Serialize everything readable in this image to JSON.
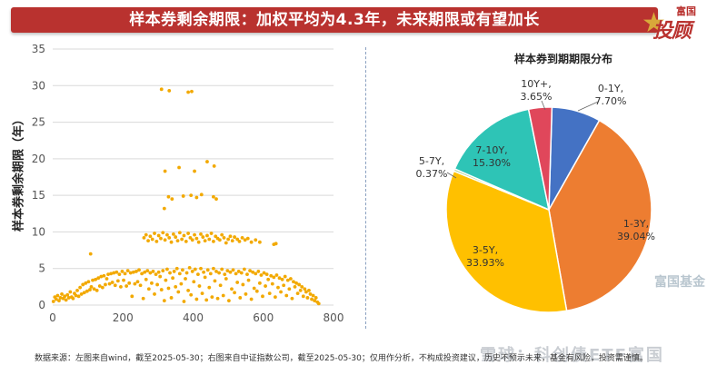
{
  "banner": {
    "title": "样本券剩余期限：加权平均为4.3年，未来期限或有望加长"
  },
  "brand": {
    "top": "富国",
    "main": "投顾"
  },
  "footer": {
    "text": "数据来源：左图来自wind，截至2025-05-30；右图来自中证指数公司，截至2025-05-30；仅用作分析，不构成投资建议，历史不预示未来，基金有风险，投资需谨慎。"
  },
  "watermarks": {
    "fund": "富国基金",
    "bottom": "雪球：科创债ETF富国"
  },
  "colors": {
    "banner": "#b9322f",
    "scatter": "#f2a900"
  },
  "chart_data": [
    {
      "type": "scatter",
      "title": "",
      "xlabel": "",
      "ylabel": "样本券剩余期限（年）",
      "xlim": [
        0,
        800
      ],
      "ylim": [
        0,
        35
      ],
      "xticks": [
        0,
        200,
        400,
        600,
        800
      ],
      "yticks": [
        0,
        5,
        10,
        15,
        20,
        25,
        30,
        35
      ],
      "grid": "horizontal",
      "series": [
        {
          "points": [
            [
              2,
              0.5
            ],
            [
              6,
              1.1
            ],
            [
              10,
              0.8
            ],
            [
              14,
              1.3
            ],
            [
              18,
              0.6
            ],
            [
              22,
              1.0
            ],
            [
              26,
              1.5
            ],
            [
              30,
              0.9
            ],
            [
              34,
              1.2
            ],
            [
              38,
              0.7
            ],
            [
              42,
              1.4
            ],
            [
              46,
              1.0
            ],
            [
              50,
              1.8
            ],
            [
              54,
              1.1
            ],
            [
              58,
              0.9
            ],
            [
              62,
              1.6
            ],
            [
              66,
              1.3
            ],
            [
              70,
              2.0
            ],
            [
              74,
              1.2
            ],
            [
              78,
              2.4
            ],
            [
              82,
              1.5
            ],
            [
              86,
              2.8
            ],
            [
              90,
              1.7
            ],
            [
              94,
              3.0
            ],
            [
              98,
              1.9
            ],
            [
              102,
              3.2
            ],
            [
              106,
              2.1
            ],
            [
              110,
              2.5
            ],
            [
              114,
              3.4
            ],
            [
              118,
              2.2
            ],
            [
              122,
              3.5
            ],
            [
              126,
              2.0
            ],
            [
              130,
              3.7
            ],
            [
              134,
              2.6
            ],
            [
              138,
              3.9
            ],
            [
              142,
              2.4
            ],
            [
              146,
              4.0
            ],
            [
              150,
              2.8
            ],
            [
              154,
              3.6
            ],
            [
              158,
              4.2
            ],
            [
              162,
              2.9
            ],
            [
              166,
              4.3
            ],
            [
              170,
              3.1
            ],
            [
              174,
              4.4
            ],
            [
              178,
              2.7
            ],
            [
              182,
              4.5
            ],
            [
              186,
              3.3
            ],
            [
              190,
              4.2
            ],
            [
              194,
              2.5
            ],
            [
              198,
              4.6
            ],
            [
              202,
              3.4
            ],
            [
              206,
              4.3
            ],
            [
              210,
              2.6
            ],
            [
              214,
              4.7
            ],
            [
              218,
              3.0
            ],
            [
              222,
              4.4
            ],
            [
              226,
              1.2
            ],
            [
              230,
              4.5
            ],
            [
              234,
              2.9
            ],
            [
              238,
              4.6
            ],
            [
              242,
              3.2
            ],
            [
              246,
              4.8
            ],
            [
              250,
              2.7
            ],
            [
              254,
              4.3
            ],
            [
              258,
              0.9
            ],
            [
              262,
              4.5
            ],
            [
              266,
              3.5
            ],
            [
              270,
              4.7
            ],
            [
              274,
              2.2
            ],
            [
              278,
              4.4
            ],
            [
              282,
              3.0
            ],
            [
              286,
              4.6
            ],
            [
              290,
              1.5
            ],
            [
              294,
              4.2
            ],
            [
              298,
              2.8
            ],
            [
              302,
              4.5
            ],
            [
              306,
              3.9
            ],
            [
              310,
              2.1
            ],
            [
              314,
              4.7
            ],
            [
              318,
              0.6
            ],
            [
              322,
              3.4
            ],
            [
              326,
              4.9
            ],
            [
              330,
              2.3
            ],
            [
              334,
              4.4
            ],
            [
              338,
              1.0
            ],
            [
              342,
              3.7
            ],
            [
              346,
              4.6
            ],
            [
              350,
              2.5
            ],
            [
              354,
              5.0
            ],
            [
              358,
              1.8
            ],
            [
              362,
              4.3
            ],
            [
              366,
              2.9
            ],
            [
              370,
              4.8
            ],
            [
              374,
              0.5
            ],
            [
              378,
              3.6
            ],
            [
              382,
              4.4
            ],
            [
              386,
              2.0
            ],
            [
              390,
              5.1
            ],
            [
              394,
              1.4
            ],
            [
              398,
              4.6
            ],
            [
              402,
              3.2
            ],
            [
              406,
              4.9
            ],
            [
              410,
              0.8
            ],
            [
              414,
              4.2
            ],
            [
              418,
              2.6
            ],
            [
              422,
              5.0
            ],
            [
              426,
              1.6
            ],
            [
              430,
              4.5
            ],
            [
              434,
              3.8
            ],
            [
              438,
              0.7
            ],
            [
              442,
              4.8
            ],
            [
              446,
              2.4
            ],
            [
              450,
              4.3
            ],
            [
              454,
              1.1
            ],
            [
              458,
              5.0
            ],
            [
              462,
              3.3
            ],
            [
              466,
              4.6
            ],
            [
              470,
              0.9
            ],
            [
              474,
              4.4
            ],
            [
              478,
              2.7
            ],
            [
              482,
              4.9
            ],
            [
              486,
              1.3
            ],
            [
              490,
              4.2
            ],
            [
              494,
              3.6
            ],
            [
              498,
              4.7
            ],
            [
              502,
              0.6
            ],
            [
              506,
              4.5
            ],
            [
              510,
              2.2
            ],
            [
              514,
              4.8
            ],
            [
              518,
              1.7
            ],
            [
              522,
              4.3
            ],
            [
              526,
              3.1
            ],
            [
              530,
              4.6
            ],
            [
              534,
              1.0
            ],
            [
              538,
              4.4
            ],
            [
              542,
              2.8
            ],
            [
              546,
              4.9
            ],
            [
              550,
              1.5
            ],
            [
              554,
              4.2
            ],
            [
              558,
              3.4
            ],
            [
              562,
              4.7
            ],
            [
              566,
              0.8
            ],
            [
              570,
              4.5
            ],
            [
              574,
              2.3
            ],
            [
              578,
              4.3
            ],
            [
              582,
              1.9
            ],
            [
              586,
              4.6
            ],
            [
              590,
              3.0
            ],
            [
              594,
              4.1
            ],
            [
              598,
              1.2
            ],
            [
              602,
              4.4
            ],
            [
              606,
              2.6
            ],
            [
              610,
              4.2
            ],
            [
              614,
              3.5
            ],
            [
              618,
              1.6
            ],
            [
              622,
              4.0
            ],
            [
              626,
              2.9
            ],
            [
              630,
              3.8
            ],
            [
              634,
              1.1
            ],
            [
              638,
              4.1
            ],
            [
              642,
              2.4
            ],
            [
              646,
              3.7
            ],
            [
              650,
              1.8
            ],
            [
              654,
              3.5
            ],
            [
              658,
              2.7
            ],
            [
              662,
              3.9
            ],
            [
              666,
              1.3
            ],
            [
              670,
              3.4
            ],
            [
              674,
              2.2
            ],
            [
              678,
              3.6
            ],
            [
              682,
              0.9
            ],
            [
              686,
              3.2
            ],
            [
              690,
              2.5
            ],
            [
              694,
              3.0
            ],
            [
              698,
              1.6
            ],
            [
              702,
              2.8
            ],
            [
              706,
              2.0
            ],
            [
              710,
              2.5
            ],
            [
              714,
              1.2
            ],
            [
              718,
              2.2
            ],
            [
              722,
              1.8
            ],
            [
              726,
              1.0
            ],
            [
              730,
              2.0
            ],
            [
              734,
              1.5
            ],
            [
              738,
              0.8
            ],
            [
              742,
              1.3
            ],
            [
              746,
              0.6
            ],
            [
              750,
              1.0
            ],
            [
              754,
              0.4
            ],
            [
              758,
              0.2
            ],
            [
              108,
              7.0
            ],
            [
              260,
              9.2
            ],
            [
              266,
              9.6
            ],
            [
              272,
              8.8
            ],
            [
              278,
              9.4
            ],
            [
              284,
              9.0
            ],
            [
              290,
              9.8
            ],
            [
              296,
              8.7
            ],
            [
              302,
              9.5
            ],
            [
              308,
              9.1
            ],
            [
              314,
              9.9
            ],
            [
              320,
              8.9
            ],
            [
              326,
              9.6
            ],
            [
              332,
              9.2
            ],
            [
              338,
              8.6
            ],
            [
              344,
              9.7
            ],
            [
              350,
              9.3
            ],
            [
              356,
              8.8
            ],
            [
              362,
              9.9
            ],
            [
              368,
              9.0
            ],
            [
              374,
              9.5
            ],
            [
              380,
              8.7
            ],
            [
              386,
              9.8
            ],
            [
              392,
              9.2
            ],
            [
              398,
              8.9
            ],
            [
              404,
              9.6
            ],
            [
              410,
              9.1
            ],
            [
              416,
              8.6
            ],
            [
              422,
              9.7
            ],
            [
              428,
              9.3
            ],
            [
              434,
              8.8
            ],
            [
              440,
              9.5
            ],
            [
              446,
              9.0
            ],
            [
              452,
              9.8
            ],
            [
              458,
              8.7
            ],
            [
              464,
              9.4
            ],
            [
              470,
              9.1
            ],
            [
              476,
              8.9
            ],
            [
              482,
              9.6
            ],
            [
              488,
              9.2
            ],
            [
              494,
              8.5
            ],
            [
              500,
              9.0
            ],
            [
              506,
              9.4
            ],
            [
              512,
              8.8
            ],
            [
              518,
              9.3
            ],
            [
              526,
              9.0
            ],
            [
              532,
              8.7
            ],
            [
              540,
              9.2
            ],
            [
              548,
              8.9
            ],
            [
              556,
              9.1
            ],
            [
              566,
              8.6
            ],
            [
              578,
              8.9
            ],
            [
              590,
              8.6
            ],
            [
              630,
              8.3
            ],
            [
              636,
              8.4
            ],
            [
              318,
              13.2
            ],
            [
              330,
              14.8
            ],
            [
              340,
              14.5
            ],
            [
              372,
              14.9
            ],
            [
              394,
              15.0
            ],
            [
              410,
              14.7
            ],
            [
              424,
              15.1
            ],
            [
              458,
              14.8
            ],
            [
              466,
              14.5
            ],
            [
              320,
              18.3
            ],
            [
              360,
              18.8
            ],
            [
              404,
              18.3
            ],
            [
              440,
              19.6
            ],
            [
              460,
              19.0
            ],
            [
              310,
              29.5
            ],
            [
              332,
              29.3
            ],
            [
              386,
              29.1
            ],
            [
              396,
              29.2
            ]
          ]
        }
      ]
    },
    {
      "type": "pie",
      "title": "样本券到期期限分布",
      "slices": [
        {
          "label": "0-1Y",
          "value": 7.7,
          "pct": "7.70%",
          "color": "#4472c4"
        },
        {
          "label": "1-3Y",
          "value": 39.04,
          "pct": "39.04%",
          "color": "#ed7d31"
        },
        {
          "label": "3-5Y",
          "value": 33.93,
          "pct": "33.93%",
          "color": "#ffc000"
        },
        {
          "label": "5-7Y",
          "value": 0.37,
          "pct": "0.37%",
          "color": "#a9d18e"
        },
        {
          "label": "7-10Y",
          "value": 15.3,
          "pct": "15.30%",
          "color": "#2ec4b6"
        },
        {
          "label": "10Y+",
          "value": 3.65,
          "pct": "3.65%",
          "color": "#e0475b"
        }
      ]
    }
  ]
}
